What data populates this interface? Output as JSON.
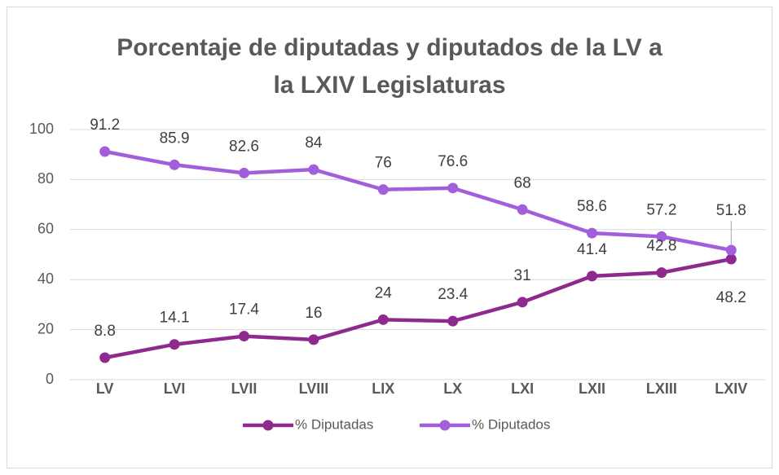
{
  "chart_data": {
    "type": "line",
    "title": [
      "Porcentaje de diputadas y diputados de la LV a",
      "la LXIV Legislaturas"
    ],
    "categories": [
      "LV",
      "LVI",
      "LVII",
      "LVIII",
      "LIX",
      "LX",
      "LXI",
      "LXII",
      "LXIII",
      "LXIV"
    ],
    "series": [
      {
        "name": "% Diputadas",
        "color": "#8e2a8e",
        "values": [
          8.8,
          14.1,
          17.4,
          16,
          24,
          23.4,
          31,
          41.4,
          42.8,
          48.2
        ]
      },
      {
        "name": "% Diputados",
        "color": "#a25fdc",
        "values": [
          91.2,
          85.9,
          82.6,
          84,
          76,
          76.6,
          68,
          58.6,
          57.2,
          51.8
        ]
      }
    ],
    "ylim": [
      0,
      100
    ],
    "yticks": [
      0,
      20,
      40,
      60,
      80,
      100
    ],
    "grid": true,
    "legend": "bottom"
  }
}
